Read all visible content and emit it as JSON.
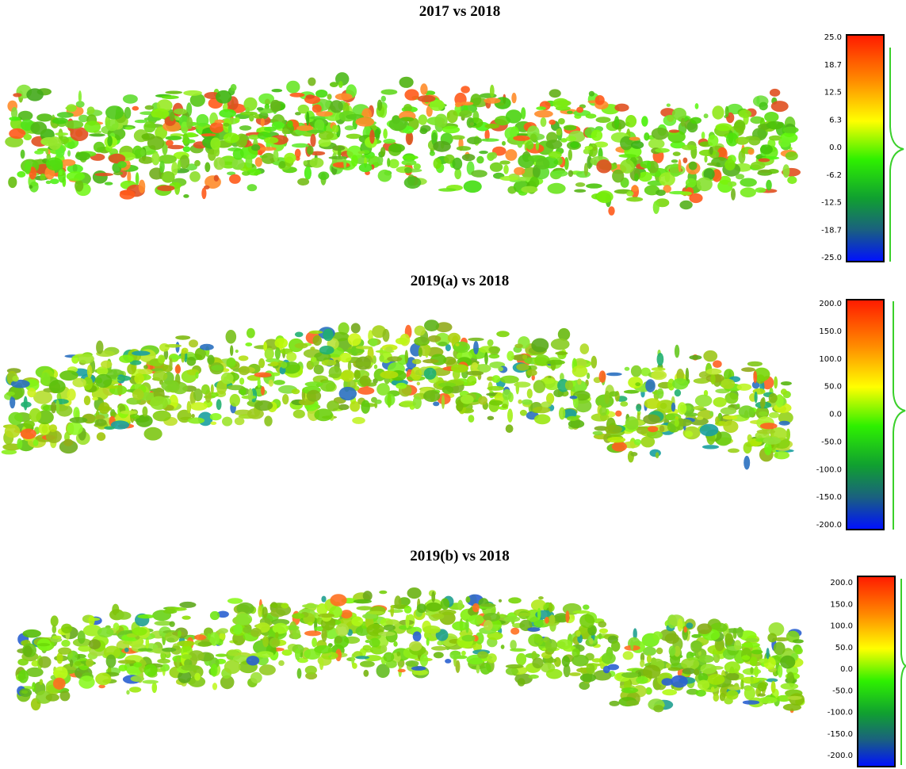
{
  "panels": [
    {
      "title": "2017 vs 2018",
      "scale_labels": [
        "25.0",
        "18.7",
        "12.5",
        "6.3",
        "0.0",
        "-6.2",
        "-12.5",
        "-18.7",
        "-25.0"
      ]
    },
    {
      "title": "2019(a) vs 2018",
      "scale_labels": [
        "200.0",
        "150.0",
        "100.0",
        "50.0",
        "0.0",
        "-50.0",
        "-100.0",
        "-150.0",
        "-200.0"
      ]
    },
    {
      "title": "2019(b) vs 2018",
      "scale_labels": [
        "200.0",
        "150.0",
        "100.0",
        "50.0",
        "0.0",
        "-50.0",
        "-100.0",
        "-150.0",
        "-200.0"
      ]
    }
  ]
}
